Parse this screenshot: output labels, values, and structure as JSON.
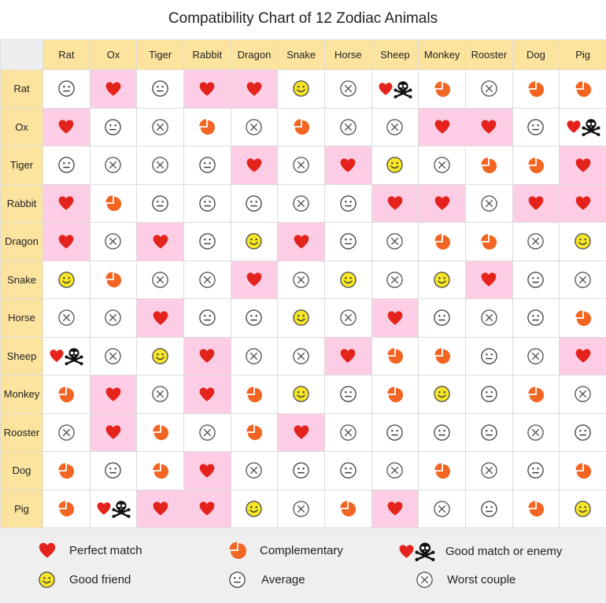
{
  "title": "Compatibility Chart of 12 Zodiac Animals",
  "colors": {
    "header_bg": "#fde49e",
    "highlight_bg": "#fdcde6",
    "heart": "#e3231c",
    "complementary": "#f26522",
    "friend_face": "#f6e629",
    "grid_line": "#dcdcdc",
    "legend_bg": "#efefef"
  },
  "chart_data": {
    "type": "table",
    "title": "Compatibility Chart of 12 Zodiac Animals",
    "columns": [
      "Rat",
      "Ox",
      "Tiger",
      "Rabbit",
      "Dragon",
      "Snake",
      "Horse",
      "Sheep",
      "Monkey",
      "Rooster",
      "Dog",
      "Pig"
    ],
    "rows": [
      "Rat",
      "Ox",
      "Tiger",
      "Rabbit",
      "Dragon",
      "Snake",
      "Horse",
      "Sheep",
      "Monkey",
      "Rooster",
      "Dog",
      "Pig"
    ],
    "codes": {
      "P": "Perfect match",
      "C": "Complementary",
      "G": "Good match or enemy",
      "F": "Good friend",
      "A": "Average",
      "W": "Worst couple"
    },
    "values": [
      [
        "A",
        "P",
        "A",
        "P",
        "P",
        "F",
        "W",
        "G",
        "C",
        "W",
        "C",
        "C"
      ],
      [
        "P",
        "A",
        "W",
        "C",
        "W",
        "C",
        "W",
        "W",
        "P",
        "P",
        "A",
        "G"
      ],
      [
        "A",
        "W",
        "W",
        "A",
        "P",
        "W",
        "P",
        "F",
        "W",
        "C",
        "C",
        "P"
      ],
      [
        "P",
        "C",
        "A",
        "A",
        "A",
        "W",
        "A",
        "P",
        "P",
        "W",
        "P",
        "P"
      ],
      [
        "P",
        "W",
        "P",
        "A",
        "F",
        "P",
        "A",
        "W",
        "C",
        "C",
        "W",
        "F"
      ],
      [
        "F",
        "C",
        "W",
        "W",
        "P",
        "W",
        "F",
        "W",
        "F",
        "P",
        "A",
        "W"
      ],
      [
        "W",
        "W",
        "P",
        "A",
        "A",
        "F",
        "W",
        "P",
        "A",
        "W",
        "A",
        "C"
      ],
      [
        "G",
        "W",
        "F",
        "P",
        "W",
        "W",
        "P",
        "C",
        "C",
        "A",
        "W",
        "P"
      ],
      [
        "C",
        "P",
        "W",
        "P",
        "C",
        "F",
        "A",
        "C",
        "F",
        "A",
        "C",
        "W"
      ],
      [
        "W",
        "P",
        "C",
        "W",
        "C",
        "P",
        "W",
        "A",
        "A",
        "A",
        "W",
        "A"
      ],
      [
        "C",
        "A",
        "C",
        "P",
        "W",
        "A",
        "A",
        "W",
        "C",
        "W",
        "A",
        "C"
      ],
      [
        "C",
        "G",
        "P",
        "P",
        "F",
        "W",
        "C",
        "P",
        "W",
        "A",
        "C",
        "F"
      ]
    ],
    "highlighted": [
      [
        false,
        true,
        false,
        true,
        true,
        false,
        false,
        false,
        false,
        false,
        false,
        false
      ],
      [
        true,
        false,
        false,
        false,
        false,
        false,
        false,
        false,
        true,
        true,
        false,
        false
      ],
      [
        false,
        false,
        false,
        false,
        true,
        false,
        true,
        false,
        false,
        false,
        false,
        true
      ],
      [
        true,
        false,
        false,
        false,
        false,
        false,
        false,
        true,
        true,
        false,
        true,
        true
      ],
      [
        true,
        false,
        true,
        false,
        false,
        true,
        false,
        false,
        false,
        false,
        false,
        false
      ],
      [
        false,
        false,
        false,
        false,
        true,
        false,
        false,
        false,
        false,
        true,
        false,
        false
      ],
      [
        false,
        false,
        true,
        false,
        false,
        false,
        false,
        true,
        false,
        false,
        false,
        false
      ],
      [
        false,
        false,
        false,
        true,
        false,
        false,
        true,
        false,
        false,
        false,
        false,
        true
      ],
      [
        false,
        true,
        false,
        true,
        false,
        false,
        false,
        false,
        false,
        false,
        false,
        false
      ],
      [
        false,
        true,
        false,
        false,
        false,
        true,
        false,
        false,
        false,
        false,
        false,
        false
      ],
      [
        false,
        false,
        false,
        true,
        false,
        false,
        false,
        false,
        false,
        false,
        false,
        false
      ],
      [
        false,
        false,
        true,
        true,
        false,
        false,
        false,
        true,
        false,
        false,
        false,
        false
      ]
    ]
  },
  "legend": [
    {
      "code": "P",
      "label": "Perfect match"
    },
    {
      "code": "C",
      "label": "Complementary"
    },
    {
      "code": "G",
      "label": "Good match or enemy"
    },
    {
      "code": "F",
      "label": "Good friend"
    },
    {
      "code": "A",
      "label": "Average"
    },
    {
      "code": "W",
      "label": "Worst couple"
    }
  ]
}
